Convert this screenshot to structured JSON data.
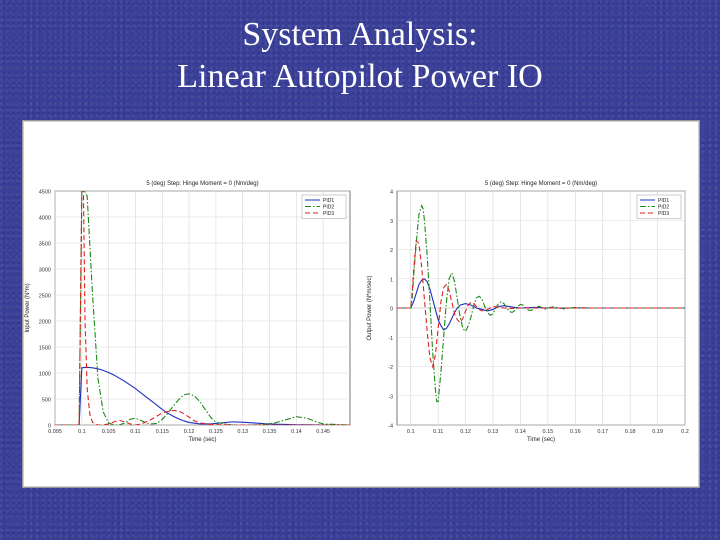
{
  "slide": {
    "title_line1": "System Analysis:",
    "title_line2": "Linear Autopilot Power IO"
  },
  "colors": {
    "PID1": "#1f2fbf",
    "PID2": "#1a8a1a",
    "PID3": "#e02020"
  },
  "chart_data": [
    {
      "type": "line",
      "title": "5 (deg) Step: Hinge Moment = 0 (Nm/deg)",
      "xlabel": "Time (sec)",
      "ylabel": "Input Power (N*m)",
      "xlim": [
        0.095,
        0.15
      ],
      "ylim": [
        0,
        4500
      ],
      "xticks": [
        "0.095",
        "0.1",
        "0.105",
        "0.11",
        "0.115",
        "0.12",
        "0.125",
        "0.13",
        "0.135",
        "0.14",
        "0.145"
      ],
      "yticks": [
        "0",
        "500",
        "1000",
        "1500",
        "2000",
        "2500",
        "3000",
        "3500",
        "4000",
        "4500"
      ],
      "grid": true,
      "legend_position": "top-right",
      "series": [
        {
          "name": "PID1",
          "color": "#1f2fbf",
          "style": "solid",
          "x": [
            0.095,
            0.0995,
            0.1,
            0.101,
            0.102,
            0.103,
            0.104,
            0.105,
            0.106,
            0.107,
            0.108,
            0.109,
            0.11,
            0.111,
            0.112,
            0.113,
            0.114,
            0.115,
            0.116,
            0.117,
            0.118,
            0.119,
            0.12,
            0.122,
            0.124,
            0.126,
            0.128,
            0.13,
            0.132,
            0.134,
            0.136,
            0.138,
            0.14,
            0.142,
            0.145,
            0.15
          ],
          "y": [
            0,
            0,
            1100,
            1110,
            1100,
            1080,
            1050,
            1010,
            960,
            900,
            840,
            770,
            700,
            620,
            540,
            460,
            380,
            300,
            230,
            170,
            120,
            80,
            50,
            20,
            20,
            40,
            60,
            55,
            40,
            25,
            15,
            10,
            5,
            5,
            0,
            0
          ]
        },
        {
          "name": "PID2",
          "color": "#1a8a1a",
          "style": "dash-dot",
          "x": [
            0.095,
            0.0995,
            0.1,
            0.1005,
            0.101,
            0.102,
            0.103,
            0.104,
            0.105,
            0.106,
            0.107,
            0.108,
            0.109,
            0.11,
            0.111,
            0.112,
            0.113,
            0.114,
            0.115,
            0.116,
            0.117,
            0.118,
            0.119,
            0.12,
            0.121,
            0.122,
            0.123,
            0.124,
            0.125,
            0.128,
            0.13,
            0.132,
            0.134,
            0.136,
            0.138,
            0.14,
            0.142,
            0.144,
            0.145,
            0.15
          ],
          "y": [
            0,
            0,
            4500,
            4500,
            4400,
            2500,
            900,
            250,
            40,
            0,
            0,
            40,
            110,
            130,
            90,
            40,
            20,
            30,
            110,
            220,
            360,
            480,
            580,
            600,
            560,
            450,
            300,
            150,
            50,
            0,
            0,
            0,
            10,
            40,
            100,
            160,
            130,
            50,
            20,
            0
          ]
        },
        {
          "name": "PID3",
          "color": "#e02020",
          "style": "dashed",
          "x": [
            0.095,
            0.0995,
            0.1,
            0.1003,
            0.1006,
            0.101,
            0.1015,
            0.102,
            0.103,
            0.104,
            0.105,
            0.106,
            0.107,
            0.108,
            0.109,
            0.11,
            0.111,
            0.112,
            0.113,
            0.114,
            0.115,
            0.116,
            0.117,
            0.118,
            0.119,
            0.12,
            0.121,
            0.122,
            0.124,
            0.126,
            0.128,
            0.13,
            0.135,
            0.14,
            0.145,
            0.15
          ],
          "y": [
            0,
            0,
            4500,
            4500,
            2000,
            700,
            200,
            50,
            0,
            0,
            20,
            60,
            90,
            60,
            20,
            0,
            20,
            60,
            110,
            170,
            230,
            260,
            280,
            270,
            220,
            150,
            80,
            40,
            10,
            5,
            0,
            0,
            0,
            0,
            0,
            0
          ]
        }
      ]
    },
    {
      "type": "line",
      "title": "5 (deg) Step: Hinge Moment = 0 (Nm/deg)",
      "xlabel": "Time (sec)",
      "ylabel": "Output Power (N*m/sec)",
      "xlim": [
        0.095,
        0.2
      ],
      "ylim": [
        -4,
        4
      ],
      "xticks": [
        "0.1",
        "0.11",
        "0.12",
        "0.13",
        "0.14",
        "0.15",
        "0.16",
        "0.17",
        "0.18",
        "0.19",
        "0.2"
      ],
      "yticks": [
        "-4",
        "-3",
        "-2",
        "-1",
        "0",
        "1",
        "2",
        "3",
        "4"
      ],
      "grid": true,
      "legend_position": "top-right",
      "series": [
        {
          "name": "PID1",
          "color": "#1f2fbf",
          "style": "solid",
          "x": [
            0.095,
            0.1,
            0.101,
            0.102,
            0.103,
            0.104,
            0.105,
            0.106,
            0.107,
            0.108,
            0.109,
            0.11,
            0.111,
            0.112,
            0.113,
            0.114,
            0.115,
            0.116,
            0.117,
            0.118,
            0.12,
            0.122,
            0.124,
            0.126,
            0.128,
            0.13,
            0.132,
            0.134,
            0.136,
            0.138,
            0.14,
            0.145,
            0.15,
            0.2
          ],
          "y": [
            0,
            0,
            0.2,
            0.5,
            0.8,
            0.95,
            1.0,
            0.9,
            0.65,
            0.3,
            -0.05,
            -0.4,
            -0.6,
            -0.75,
            -0.7,
            -0.55,
            -0.35,
            -0.15,
            0.0,
            0.1,
            0.15,
            0.1,
            0.0,
            -0.05,
            -0.1,
            -0.05,
            0.05,
            0.08,
            0.05,
            0.02,
            0.0,
            0.02,
            0.0,
            0.0
          ]
        },
        {
          "name": "PID2",
          "color": "#1a8a1a",
          "style": "dash-dot",
          "x": [
            0.095,
            0.1,
            0.1005,
            0.101,
            0.102,
            0.103,
            0.104,
            0.1045,
            0.105,
            0.106,
            0.107,
            0.108,
            0.109,
            0.1095,
            0.11,
            0.111,
            0.112,
            0.113,
            0.114,
            0.115,
            0.116,
            0.117,
            0.118,
            0.119,
            0.12,
            0.121,
            0.122,
            0.123,
            0.124,
            0.125,
            0.126,
            0.127,
            0.128,
            0.129,
            0.13,
            0.131,
            0.132,
            0.133,
            0.134,
            0.135,
            0.136,
            0.137,
            0.138,
            0.139,
            0.14,
            0.141,
            0.142,
            0.143,
            0.144,
            0.145,
            0.146,
            0.147,
            0.148,
            0.149,
            0.15,
            0.152,
            0.154,
            0.156,
            0.158,
            0.16,
            0.165,
            0.17,
            0.2
          ],
          "y": [
            0,
            0,
            0.3,
            1.0,
            2.2,
            3.2,
            3.5,
            3.4,
            3.0,
            1.8,
            0.2,
            -1.5,
            -2.8,
            -3.2,
            -3.2,
            -2.2,
            -1.0,
            0.2,
            1.0,
            1.2,
            0.9,
            0.3,
            -0.3,
            -0.7,
            -0.8,
            -0.6,
            -0.3,
            0.1,
            0.35,
            0.4,
            0.3,
            0.05,
            -0.15,
            -0.25,
            -0.2,
            0.0,
            0.15,
            0.22,
            0.15,
            0.0,
            -0.12,
            -0.15,
            -0.08,
            0.05,
            0.12,
            0.1,
            0.0,
            -0.08,
            -0.08,
            0.0,
            0.06,
            0.05,
            0.0,
            -0.04,
            0.0,
            0.04,
            0.0,
            -0.03,
            0.0,
            0.02,
            0.0,
            0.0,
            0.0
          ]
        },
        {
          "name": "PID3",
          "color": "#e02020",
          "style": "dashed",
          "x": [
            0.095,
            0.1,
            0.1005,
            0.101,
            0.102,
            0.103,
            0.104,
            0.105,
            0.106,
            0.107,
            0.108,
            0.109,
            0.11,
            0.111,
            0.112,
            0.113,
            0.114,
            0.115,
            0.116,
            0.117,
            0.118,
            0.119,
            0.12,
            0.121,
            0.122,
            0.123,
            0.124,
            0.125,
            0.126,
            0.128,
            0.13,
            0.132,
            0.134,
            0.136,
            0.14,
            0.15,
            0.2
          ],
          "y": [
            0,
            0,
            0.5,
            1.2,
            2.3,
            2.2,
            1.4,
            0.3,
            -0.8,
            -1.7,
            -2.0,
            -1.6,
            -0.7,
            0.2,
            0.7,
            0.8,
            0.6,
            0.2,
            -0.2,
            -0.4,
            -0.5,
            -0.35,
            -0.1,
            0.1,
            0.2,
            0.15,
            0.05,
            -0.05,
            -0.1,
            -0.05,
            0.05,
            0.03,
            0.0,
            -0.02,
            0.0,
            0.0,
            0.0
          ]
        }
      ]
    }
  ]
}
